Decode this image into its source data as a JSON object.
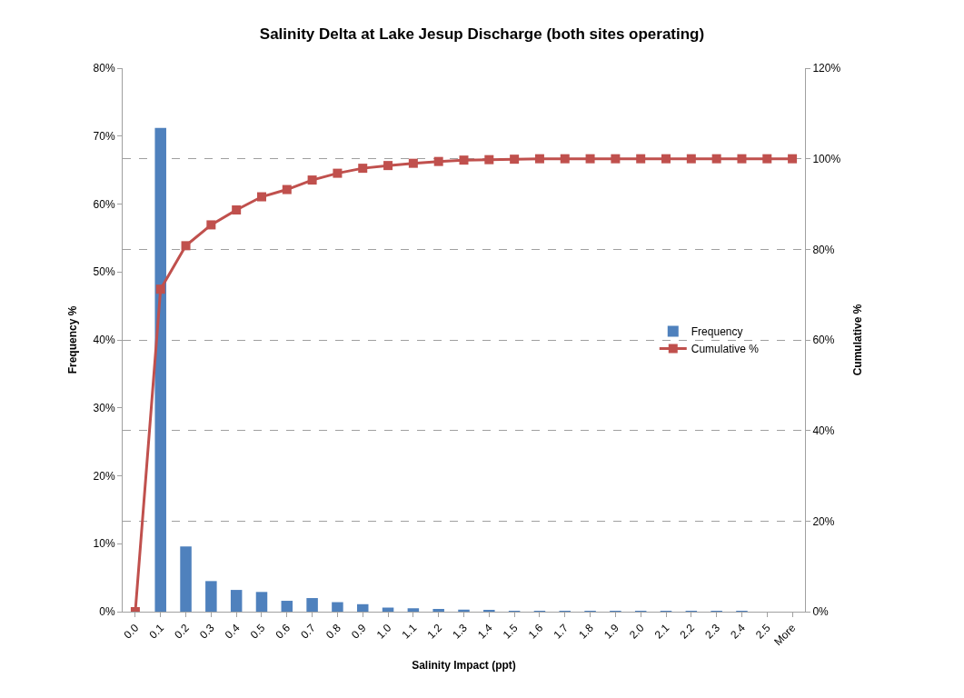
{
  "chart_data": {
    "type": "bar",
    "title": "Salinity Delta at Lake Jesup Discharge (both sites operating)",
    "xlabel": "Salinity Impact (ppt)",
    "ylabel": "Frequency %",
    "y2label": "Cumulative %",
    "categories": [
      "0.0",
      "0.1",
      "0.2",
      "0.3",
      "0.4",
      "0.5",
      "0.6",
      "0.7",
      "0.8",
      "0.9",
      "1.0",
      "1.1",
      "1.2",
      "1.3",
      "1.4",
      "1.5",
      "1.6",
      "1.7",
      "1.8",
      "1.9",
      "2.0",
      "2.1",
      "2.2",
      "2.3",
      "2.4",
      "2.5",
      "More"
    ],
    "series": [
      {
        "name": "Frequency",
        "color": "#4f81bd",
        "values": [
          0,
          71.2,
          9.6,
          4.5,
          3.2,
          2.9,
          1.6,
          2.0,
          1.4,
          1.1,
          0.6,
          0.5,
          0.4,
          0.3,
          0.2,
          0.1,
          0.1,
          0.1,
          0.1,
          0.1,
          0.1,
          0.1,
          0.1,
          0.1,
          0.1,
          0,
          0
        ]
      },
      {
        "name": "Cumulative %",
        "type": "line",
        "axis": "y2",
        "marker": "square",
        "line_style": "solid",
        "color": "#c0504d",
        "values": [
          0,
          71.2,
          80.8,
          85.4,
          88.7,
          91.6,
          93.2,
          95.3,
          96.8,
          97.9,
          98.5,
          99.0,
          99.4,
          99.7,
          99.8,
          99.9,
          100,
          100,
          100,
          100,
          100,
          100,
          100,
          100,
          100,
          100,
          100
        ]
      }
    ],
    "ylim": [
      0,
      80
    ],
    "yticks": [
      {
        "value": 0,
        "label": "0%"
      },
      {
        "value": 10,
        "label": "10%"
      },
      {
        "value": 20,
        "label": "20%"
      },
      {
        "value": 30,
        "label": "30%"
      },
      {
        "value": 40,
        "label": "40%"
      },
      {
        "value": 50,
        "label": "50%"
      },
      {
        "value": 60,
        "label": "60%"
      },
      {
        "value": 70,
        "label": "70%"
      },
      {
        "value": 80,
        "label": "80%"
      }
    ],
    "y2lim": [
      0,
      120
    ],
    "y2ticks": [
      {
        "value": 0,
        "label": "0%"
      },
      {
        "value": 20,
        "label": "20%"
      },
      {
        "value": 40,
        "label": "40%"
      },
      {
        "value": 60,
        "label": "60%"
      },
      {
        "value": 80,
        "label": "80%"
      },
      {
        "value": 100,
        "label": "100%"
      },
      {
        "value": 120,
        "label": "120%"
      }
    ],
    "grid": "y",
    "legend": "right"
  }
}
